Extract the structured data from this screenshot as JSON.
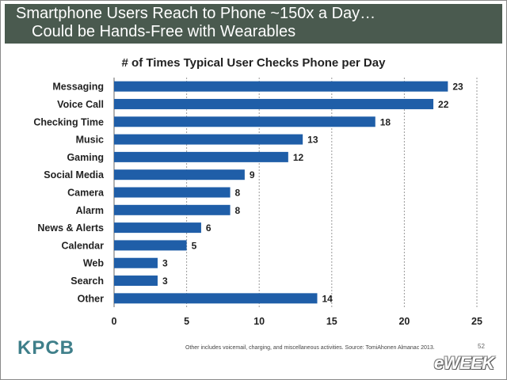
{
  "banner": {
    "line1": "Smartphone Users Reach to Phone ~150x a Day…",
    "line2": "Could be Hands-Free with Wearables"
  },
  "chart_data": {
    "type": "bar",
    "orientation": "horizontal",
    "title": "# of Times Typical User Checks Phone per Day",
    "categories": [
      "Messaging",
      "Voice Call",
      "Checking Time",
      "Music",
      "Gaming",
      "Social Media",
      "Camera",
      "Alarm",
      "News & Alerts",
      "Calendar",
      "Web",
      "Search",
      "Other"
    ],
    "values": [
      23,
      22,
      18,
      13,
      12,
      9,
      8,
      8,
      6,
      5,
      3,
      3,
      14
    ],
    "xlim": [
      0,
      25
    ],
    "xticks": [
      0,
      5,
      10,
      15,
      20,
      25
    ],
    "grid": "vertical dashed",
    "bar_color": "#1f5ea8"
  },
  "footer": {
    "logo": "KPCB",
    "source": "Other includes voicemail, charging, and miscellaneous activities. Source: TomiAhonen Almanac 2013.",
    "page": "52",
    "watermark": "eWEEK"
  }
}
